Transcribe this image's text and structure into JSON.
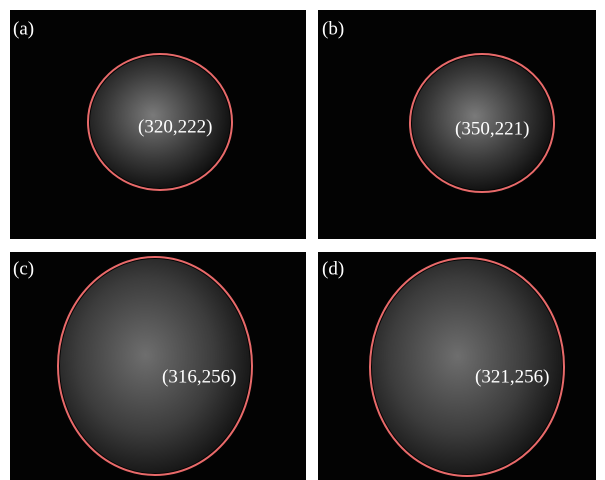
{
  "panels": [
    {
      "label": "(a)",
      "annotation": "(320,222)"
    },
    {
      "label": "(b)",
      "annotation": "(350,221)"
    },
    {
      "label": "(c)",
      "annotation": "(316,256)"
    },
    {
      "label": "(d)",
      "annotation": "(321,256)"
    }
  ]
}
